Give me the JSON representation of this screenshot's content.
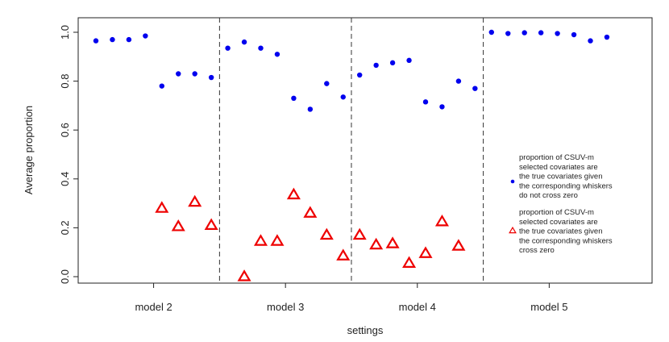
{
  "chart_data": {
    "type": "scatter",
    "title": "",
    "xlabel": "settings",
    "ylabel": "Average proportion",
    "ylim": [
      0,
      1
    ],
    "yticks": [
      "0.0",
      "0.2",
      "0.4",
      "0.6",
      "0.8",
      "1.0"
    ],
    "groups": [
      "model 2",
      "model 3",
      "model 4",
      "model 5"
    ],
    "grid": false,
    "legend_position": "right",
    "series": [
      {
        "name": "proportion of CSUV-m selected covariates are the true covariates given the corresponding whiskers do not cross zero",
        "legend_lines": [
          "proportion of CSUV-m",
          "selected covariates are",
          "the true covariates given",
          "the corresponding whiskers",
          "do not cross zero"
        ],
        "marker": "circle",
        "color": "#0000ee",
        "points": [
          {
            "x": 1,
            "y": 0.965
          },
          {
            "x": 2,
            "y": 0.97
          },
          {
            "x": 3,
            "y": 0.97
          },
          {
            "x": 4,
            "y": 0.985
          },
          {
            "x": 5,
            "y": 0.78
          },
          {
            "x": 6,
            "y": 0.83
          },
          {
            "x": 7,
            "y": 0.83
          },
          {
            "x": 8,
            "y": 0.815
          },
          {
            "x": 9,
            "y": 0.935
          },
          {
            "x": 10,
            "y": 0.96
          },
          {
            "x": 11,
            "y": 0.935
          },
          {
            "x": 12,
            "y": 0.91
          },
          {
            "x": 13,
            "y": 0.73
          },
          {
            "x": 14,
            "y": 0.685
          },
          {
            "x": 15,
            "y": 0.79
          },
          {
            "x": 16,
            "y": 0.735
          },
          {
            "x": 17,
            "y": 0.825
          },
          {
            "x": 18,
            "y": 0.865
          },
          {
            "x": 19,
            "y": 0.875
          },
          {
            "x": 20,
            "y": 0.885
          },
          {
            "x": 21,
            "y": 0.715
          },
          {
            "x": 22,
            "y": 0.695
          },
          {
            "x": 23,
            "y": 0.8
          },
          {
            "x": 24,
            "y": 0.77
          },
          {
            "x": 25,
            "y": 1.0
          },
          {
            "x": 26,
            "y": 0.995
          },
          {
            "x": 27,
            "y": 0.998
          },
          {
            "x": 28,
            "y": 0.998
          },
          {
            "x": 29,
            "y": 0.995
          },
          {
            "x": 30,
            "y": 0.99
          },
          {
            "x": 31,
            "y": 0.965
          },
          {
            "x": 32,
            "y": 0.98
          }
        ]
      },
      {
        "name": "proportion of CSUV-m selected covariates are the true covariates given the corresponding whiskers cross zero",
        "legend_lines": [
          "proportion of CSUV-m",
          "selected covariates are",
          "the true covariates given",
          "the corresponding whiskers",
          "cross zero"
        ],
        "marker": "triangle-open",
        "color": "#ee0000",
        "points": [
          {
            "x": 5,
            "y": 0.28
          },
          {
            "x": 6,
            "y": 0.205
          },
          {
            "x": 7,
            "y": 0.305
          },
          {
            "x": 8,
            "y": 0.21
          },
          {
            "x": 10,
            "y": 0.0
          },
          {
            "x": 11,
            "y": 0.145
          },
          {
            "x": 12,
            "y": 0.145
          },
          {
            "x": 13,
            "y": 0.335
          },
          {
            "x": 14,
            "y": 0.26
          },
          {
            "x": 15,
            "y": 0.17
          },
          {
            "x": 16,
            "y": 0.085
          },
          {
            "x": 17,
            "y": 0.17
          },
          {
            "x": 18,
            "y": 0.13
          },
          {
            "x": 19,
            "y": 0.135
          },
          {
            "x": 20,
            "y": 0.055
          },
          {
            "x": 21,
            "y": 0.095
          },
          {
            "x": 22,
            "y": 0.225
          },
          {
            "x": 23,
            "y": 0.125
          }
        ]
      }
    ]
  }
}
